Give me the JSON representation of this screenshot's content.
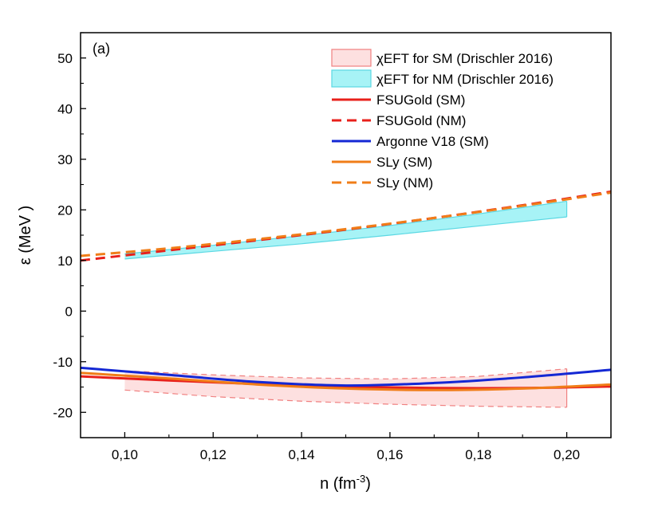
{
  "chart_data": {
    "type": "line",
    "panel_label": "(a)",
    "xlabel": "n (fm",
    "xlabel_sup": "-3",
    "xlabel_end": ")",
    "ylabel": "ε (MeV )",
    "xlim": [
      0.09,
      0.21
    ],
    "ylim": [
      -25,
      55
    ],
    "x_ticks": [
      0.1,
      0.12,
      0.14,
      0.16,
      0.18,
      0.2
    ],
    "x_tick_labels": [
      "0,10",
      "0,12",
      "0,14",
      "0,16",
      "0,18",
      "0,20"
    ],
    "y_ticks": [
      -20,
      -10,
      0,
      10,
      20,
      30,
      40,
      50
    ],
    "y_tick_labels": [
      "-20",
      "-10",
      "0",
      "10",
      "20",
      "30",
      "40",
      "50"
    ],
    "grid": false,
    "legend_position": "top-right",
    "bands": [
      {
        "name": "χEFT for SM (Drischler 2016)",
        "color": "#f08080",
        "fill": "#fde0e0",
        "x": [
          0.1,
          0.12,
          0.14,
          0.16,
          0.18,
          0.2
        ],
        "upper": [
          -11.8,
          -12.6,
          -13.2,
          -13.4,
          -12.9,
          -11.4
        ],
        "lower": [
          -15.6,
          -16.9,
          -17.8,
          -18.4,
          -18.8,
          -19.0
        ]
      },
      {
        "name": "χEFT for NM (Drischler 2016)",
        "color": "#5bd8e3",
        "fill": "#a7f3f6",
        "x": [
          0.1,
          0.12,
          0.14,
          0.16,
          0.18,
          0.2
        ],
        "upper": [
          11.3,
          13.0,
          14.9,
          16.9,
          19.2,
          21.7
        ],
        "lower": [
          10.3,
          11.8,
          13.3,
          15.0,
          16.8,
          18.6
        ]
      }
    ],
    "series": [
      {
        "name": "FSUGold (SM)",
        "color": "#e8201b",
        "dash": false,
        "x": [
          0.09,
          0.11,
          0.13,
          0.15,
          0.17,
          0.19,
          0.21
        ],
        "y": [
          -12.9,
          -13.7,
          -14.4,
          -14.9,
          -15.2,
          -15.2,
          -14.9
        ]
      },
      {
        "name": "FSUGold (NM)",
        "color": "#e8201b",
        "dash": true,
        "x": [
          0.09,
          0.11,
          0.13,
          0.15,
          0.17,
          0.19,
          0.21
        ],
        "y": [
          10.0,
          12.0,
          14.0,
          16.1,
          18.4,
          20.9,
          23.6
        ]
      },
      {
        "name": "Argonne V18 (SM)",
        "color": "#1428d4",
        "dash": false,
        "x": [
          0.09,
          0.11,
          0.13,
          0.15,
          0.17,
          0.19,
          0.21
        ],
        "y": [
          -11.2,
          -12.6,
          -14.0,
          -14.7,
          -14.2,
          -13.1,
          -11.6
        ]
      },
      {
        "name": "SLy (SM)",
        "color": "#f07d18",
        "dash": false,
        "x": [
          0.09,
          0.11,
          0.13,
          0.15,
          0.17,
          0.19,
          0.21
        ],
        "y": [
          -12.2,
          -13.3,
          -14.5,
          -15.3,
          -15.6,
          -15.3,
          -14.5
        ]
      },
      {
        "name": "SLy (NM)",
        "color": "#f07d18",
        "dash": true,
        "x": [
          0.09,
          0.11,
          0.13,
          0.15,
          0.17,
          0.19,
          0.21
        ],
        "y": [
          10.9,
          12.4,
          14.2,
          16.2,
          18.4,
          20.8,
          23.4
        ]
      }
    ]
  }
}
